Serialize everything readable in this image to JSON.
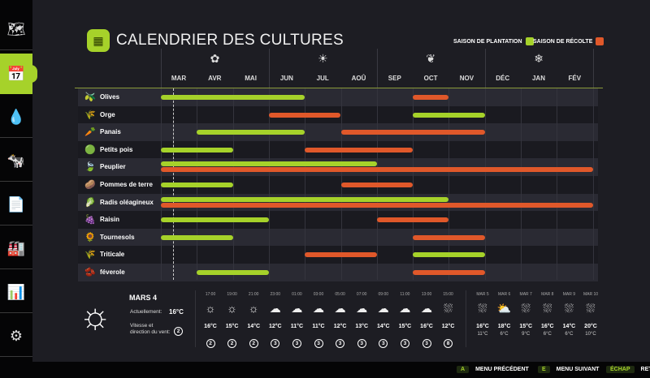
{
  "sidebar": {
    "items": [
      {
        "name": "map",
        "icon": "🗺"
      },
      {
        "name": "calendar",
        "icon": "📅",
        "active": true
      },
      {
        "name": "water",
        "icon": "💧"
      },
      {
        "name": "animals",
        "icon": "🐄"
      },
      {
        "name": "contracts",
        "icon": "📄"
      },
      {
        "name": "production",
        "icon": "🏭"
      },
      {
        "name": "statistics",
        "icon": "📊"
      },
      {
        "name": "settings",
        "icon": "⚙"
      }
    ]
  },
  "header": {
    "title": "CALENDRIER DES CULTURES",
    "legend_planting": "SAISON DE PLANTATION",
    "legend_harvest": "SAISON DE RÉCOLTE"
  },
  "colors": {
    "planting": "#a6d22a",
    "harvest": "#e0582a"
  },
  "seasons": [
    "spring-icon",
    "summer-icon",
    "autumn-icon",
    "winter-icon"
  ],
  "months": [
    "MAR",
    "AVR",
    "MAI",
    "JUN",
    "JUL",
    "AOÛ",
    "SEP",
    "OCT",
    "NOV",
    "DÉC",
    "JAN",
    "FÉV"
  ],
  "crops": [
    {
      "name": "Olives",
      "icon": "🫒",
      "planting": [
        [
          0,
          4
        ]
      ],
      "harvest": [
        [
          7,
          8
        ]
      ]
    },
    {
      "name": "Orge",
      "icon": "🌾",
      "planting": [
        [
          7,
          9
        ]
      ],
      "harvest": [
        [
          3,
          5
        ]
      ]
    },
    {
      "name": "Panais",
      "icon": "🥕",
      "planting": [
        [
          1,
          4
        ]
      ],
      "harvest": [
        [
          5,
          9
        ]
      ]
    },
    {
      "name": "Petits pois",
      "icon": "🟢",
      "planting": [
        [
          0,
          2
        ]
      ],
      "harvest": [
        [
          4,
          7
        ]
      ]
    },
    {
      "name": "Peuplier",
      "icon": "🍃",
      "planting": [
        [
          0,
          6
        ]
      ],
      "harvest": [
        [
          0,
          12
        ]
      ]
    },
    {
      "name": "Pommes de terre",
      "icon": "🥔",
      "planting": [
        [
          0,
          2
        ]
      ],
      "harvest": [
        [
          5,
          7
        ]
      ]
    },
    {
      "name": "Radis oléagineux",
      "icon": "🥬",
      "planting": [
        [
          0,
          8
        ]
      ],
      "harvest": [
        [
          0,
          12
        ]
      ]
    },
    {
      "name": "Raisin",
      "icon": "🍇",
      "planting": [
        [
          0,
          3
        ]
      ],
      "harvest": [
        [
          6,
          8
        ]
      ]
    },
    {
      "name": "Tournesols",
      "icon": "🌻",
      "planting": [
        [
          0,
          2
        ]
      ],
      "harvest": [
        [
          7,
          9
        ]
      ]
    },
    {
      "name": "Triticale",
      "icon": "🌾",
      "planting": [
        [
          7,
          9
        ]
      ],
      "harvest": [
        [
          4,
          6
        ]
      ]
    },
    {
      "name": "féverole",
      "icon": "🫘",
      "planting": [
        [
          1,
          3
        ]
      ],
      "harvest": [
        [
          7,
          9
        ]
      ]
    }
  ],
  "weather": {
    "date": "MARS 4",
    "current_label": "Actuellement:",
    "current_temp": "16°C",
    "wind_label_1": "Vitesse et",
    "wind_label_2": "direction du vent:",
    "wind": "2",
    "hourly": [
      {
        "time": "17:00",
        "icon": "sun",
        "temp": "16°C",
        "wind": "2"
      },
      {
        "time": "19:00",
        "icon": "sun",
        "temp": "15°C",
        "wind": "2"
      },
      {
        "time": "21:00",
        "icon": "sun",
        "temp": "14°C",
        "wind": "2"
      },
      {
        "time": "23:00",
        "icon": "cloud",
        "temp": "12°C",
        "wind": "3"
      },
      {
        "time": "01:00",
        "icon": "cloud",
        "temp": "11°C",
        "wind": "3"
      },
      {
        "time": "03:00",
        "icon": "cloud",
        "temp": "11°C",
        "wind": "3"
      },
      {
        "time": "05:00",
        "icon": "cloud",
        "temp": "12°C",
        "wind": "3"
      },
      {
        "time": "07:00",
        "icon": "cloud",
        "temp": "13°C",
        "wind": "3"
      },
      {
        "time": "09:00",
        "icon": "cloud",
        "temp": "14°C",
        "wind": "3"
      },
      {
        "time": "11:00",
        "icon": "cloud",
        "temp": "15°C",
        "wind": "3"
      },
      {
        "time": "13:00",
        "icon": "cloud",
        "temp": "16°C",
        "wind": "3"
      },
      {
        "time": "15:00",
        "icon": "rain",
        "temp": "12°C",
        "wind": "8"
      }
    ],
    "daily": [
      {
        "day": "MAR 5",
        "icon": "rain",
        "high": "16°C",
        "low": "11°C"
      },
      {
        "day": "MAR 6",
        "icon": "partly-sunny",
        "high": "18°C",
        "low": "6°C"
      },
      {
        "day": "MAR 7",
        "icon": "rain",
        "high": "15°C",
        "low": "9°C"
      },
      {
        "day": "MAR 8",
        "icon": "rain",
        "high": "16°C",
        "low": "6°C"
      },
      {
        "day": "MAR 9",
        "icon": "rain",
        "high": "14°C",
        "low": "6°C"
      },
      {
        "day": "MAR 10",
        "icon": "rain",
        "high": "20°C",
        "low": "10°C"
      }
    ]
  },
  "footer": [
    {
      "key": "A",
      "label": "MENU PRÉCÉDENT"
    },
    {
      "key": "E",
      "label": "MENU SUIVANT"
    },
    {
      "key": "ÉCHAP",
      "label": "RETOUR"
    }
  ]
}
